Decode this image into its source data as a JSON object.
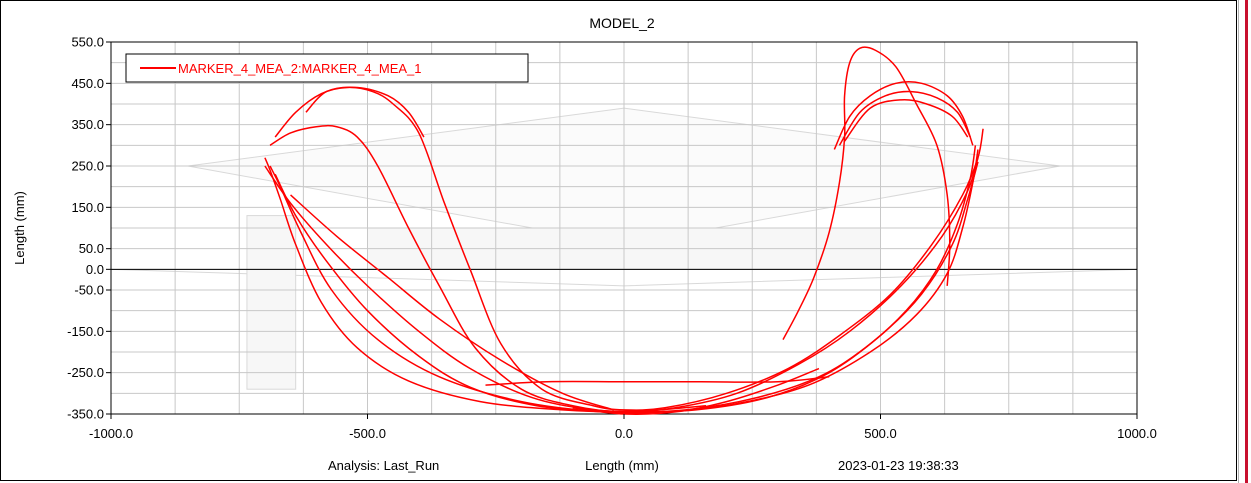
{
  "chart_data": {
    "type": "line",
    "title": "MODEL_2",
    "xlabel": "Length (mm)",
    "ylabel": "Length (mm)",
    "xlim": [
      -1000,
      1000
    ],
    "ylim": [
      -350,
      550
    ],
    "x_ticks": [
      {
        "value": -1000,
        "label": "-1000.0"
      },
      {
        "value": -500,
        "label": "-500.0"
      },
      {
        "value": 0,
        "label": "0.0"
      },
      {
        "value": 500,
        "label": "500.0"
      },
      {
        "value": 1000,
        "label": "1000.0"
      }
    ],
    "y_ticks": [
      {
        "value": 550,
        "label": "550.0"
      },
      {
        "value": 450,
        "label": "450.0"
      },
      {
        "value": 350,
        "label": "350.0"
      },
      {
        "value": 250,
        "label": "250.0"
      },
      {
        "value": 150,
        "label": "150.0"
      },
      {
        "value": 50,
        "label": "50.0"
      },
      {
        "value": 0,
        "label": "0.0"
      },
      {
        "value": -50,
        "label": "-50.0"
      },
      {
        "value": -150,
        "label": "-150.0"
      },
      {
        "value": -250,
        "label": "-250.0"
      },
      {
        "value": -350,
        "label": "-350.0"
      }
    ],
    "grid": true,
    "legend_position": "top-left",
    "series": [
      {
        "name": "MARKER_4_MEA_2:MARKER_4_MEA_1",
        "color": "#ff0000",
        "strands": [
          [
            [
              -680,
              320
            ],
            [
              -640,
              380
            ],
            [
              -590,
              425
            ],
            [
              -540,
              440
            ],
            [
              -490,
              430
            ],
            [
              -450,
              400
            ],
            [
              -400,
              330
            ],
            [
              -350,
              160
            ],
            [
              -300,
              0
            ],
            [
              -240,
              -180
            ],
            [
              -160,
              -290
            ],
            [
              -60,
              -330
            ],
            [
              0,
              -340
            ],
            [
              80,
              -335
            ],
            [
              200,
              -300
            ],
            [
              320,
              -240
            ],
            [
              420,
              -160
            ],
            [
              520,
              -60
            ],
            [
              600,
              60
            ],
            [
              660,
              180
            ],
            [
              690,
              270
            ],
            [
              700,
              340
            ]
          ],
          [
            [
              -690,
              300
            ],
            [
              -650,
              330
            ],
            [
              -600,
              345
            ],
            [
              -560,
              345
            ],
            [
              -520,
              320
            ],
            [
              -480,
              250
            ],
            [
              -420,
              100
            ],
            [
              -360,
              -40
            ],
            [
              -290,
              -190
            ],
            [
              -200,
              -290
            ],
            [
              -100,
              -330
            ],
            [
              0,
              -345
            ],
            [
              100,
              -335
            ],
            [
              220,
              -300
            ],
            [
              340,
              -230
            ],
            [
              440,
              -150
            ],
            [
              540,
              -40
            ],
            [
              620,
              80
            ],
            [
              670,
              190
            ],
            [
              690,
              270
            ]
          ],
          [
            [
              -700,
              270
            ],
            [
              -690,
              240
            ],
            [
              -670,
              170
            ],
            [
              -640,
              60
            ],
            [
              -590,
              -80
            ],
            [
              -520,
              -190
            ],
            [
              -420,
              -270
            ],
            [
              -280,
              -320
            ],
            [
              -120,
              -340
            ],
            [
              0,
              -345
            ],
            [
              140,
              -340
            ],
            [
              280,
              -310
            ],
            [
              400,
              -250
            ],
            [
              500,
              -160
            ],
            [
              580,
              -60
            ],
            [
              640,
              60
            ],
            [
              670,
              170
            ],
            [
              690,
              260
            ]
          ],
          [
            [
              -690,
              250
            ],
            [
              -670,
              200
            ],
            [
              -630,
              90
            ],
            [
              -570,
              -50
            ],
            [
              -480,
              -170
            ],
            [
              -360,
              -260
            ],
            [
              -200,
              -320
            ],
            [
              -40,
              -345
            ],
            [
              80,
              -345
            ],
            [
              220,
              -325
            ],
            [
              360,
              -280
            ],
            [
              480,
              -200
            ],
            [
              570,
              -110
            ],
            [
              630,
              -10
            ],
            [
              660,
              100
            ],
            [
              680,
              210
            ],
            [
              690,
              290
            ]
          ],
          [
            [
              -680,
              230
            ],
            [
              -640,
              130
            ],
            [
              -580,
              20
            ],
            [
              -500,
              -100
            ],
            [
              -400,
              -210
            ],
            [
              -300,
              -285
            ],
            [
              -170,
              -330
            ],
            [
              -20,
              -345
            ],
            [
              120,
              -340
            ],
            [
              260,
              -310
            ],
            [
              380,
              -260
            ],
            [
              470,
              -190
            ],
            [
              550,
              -100
            ],
            [
              610,
              0
            ],
            [
              650,
              110
            ],
            [
              675,
              220
            ],
            [
              685,
              300
            ]
          ],
          [
            [
              -270,
              -280
            ],
            [
              -150,
              -272
            ],
            [
              0,
              -272
            ],
            [
              150,
              -272
            ],
            [
              300,
              -272
            ],
            [
              400,
              -260
            ]
          ],
          [
            [
              -700,
              250
            ],
            [
              -650,
              160
            ],
            [
              -580,
              60
            ],
            [
              -500,
              -40
            ],
            [
              -400,
              -150
            ],
            [
              -300,
              -240
            ],
            [
              -180,
              -310
            ],
            [
              -60,
              -340
            ],
            [
              40,
              -342
            ],
            [
              160,
              -330
            ]
          ],
          [
            [
              -650,
              180
            ],
            [
              -560,
              80
            ],
            [
              -460,
              -20
            ],
            [
              -360,
              -120
            ],
            [
              -240,
              -220
            ],
            [
              -120,
              -300
            ],
            [
              -20,
              -340
            ]
          ],
          [
            [
              310,
              -170
            ],
            [
              340,
              -100
            ],
            [
              370,
              -20
            ],
            [
              400,
              90
            ],
            [
              420,
              210
            ],
            [
              430,
              320
            ],
            [
              430,
              420
            ],
            [
              440,
              500
            ],
            [
              460,
              535
            ],
            [
              490,
              530
            ],
            [
              530,
              490
            ],
            [
              570,
              400
            ],
            [
              610,
              300
            ],
            [
              630,
              180
            ],
            [
              635,
              60
            ],
            [
              630,
              -40
            ]
          ],
          [
            [
              410,
              290
            ],
            [
              440,
              370
            ],
            [
              480,
              420
            ],
            [
              530,
              450
            ],
            [
              580,
              450
            ],
            [
              630,
              420
            ],
            [
              660,
              370
            ],
            [
              680,
              300
            ]
          ],
          [
            [
              420,
              300
            ],
            [
              460,
              380
            ],
            [
              510,
              420
            ],
            [
              560,
              430
            ],
            [
              610,
              415
            ],
            [
              650,
              380
            ],
            [
              675,
              320
            ]
          ],
          [
            [
              430,
              310
            ],
            [
              480,
              390
            ],
            [
              540,
              410
            ],
            [
              590,
              400
            ],
            [
              640,
              370
            ],
            [
              670,
              320
            ]
          ],
          [
            [
              -620,
              380
            ],
            [
              -580,
              430
            ],
            [
              -520,
              440
            ],
            [
              -460,
              420
            ],
            [
              -420,
              380
            ],
            [
              -390,
              320
            ]
          ],
          [
            [
              -100,
              -335
            ],
            [
              0,
              -350
            ],
            [
              100,
              -345
            ],
            [
              200,
              -320
            ],
            [
              300,
              -280
            ],
            [
              380,
              -240
            ]
          ]
        ]
      }
    ],
    "annotations": {
      "analysis": "Analysis:  Last_Run",
      "timestamp": "2023-01-23 19:38:33"
    },
    "background_shapes": [
      {
        "type": "polygon",
        "color": "#d9d9d9",
        "points": [
          [
            -850,
            250
          ],
          [
            0,
            390
          ],
          [
            850,
            250
          ],
          [
            0,
            60
          ]
        ]
      },
      {
        "type": "polyline",
        "color": "#d9d9d9",
        "points": [
          [
            -1000,
            0
          ],
          [
            -500,
            -20
          ],
          [
            0,
            -40
          ],
          [
            500,
            -20
          ],
          [
            1000,
            0
          ]
        ]
      },
      {
        "type": "rect",
        "color": "#d9d9d9",
        "x": [
          -735,
          -640
        ],
        "y": [
          -290,
          130
        ]
      },
      {
        "type": "rect",
        "color": "#d9d9d9",
        "x": [
          -500,
          500
        ],
        "y": [
          0,
          100
        ]
      }
    ]
  }
}
